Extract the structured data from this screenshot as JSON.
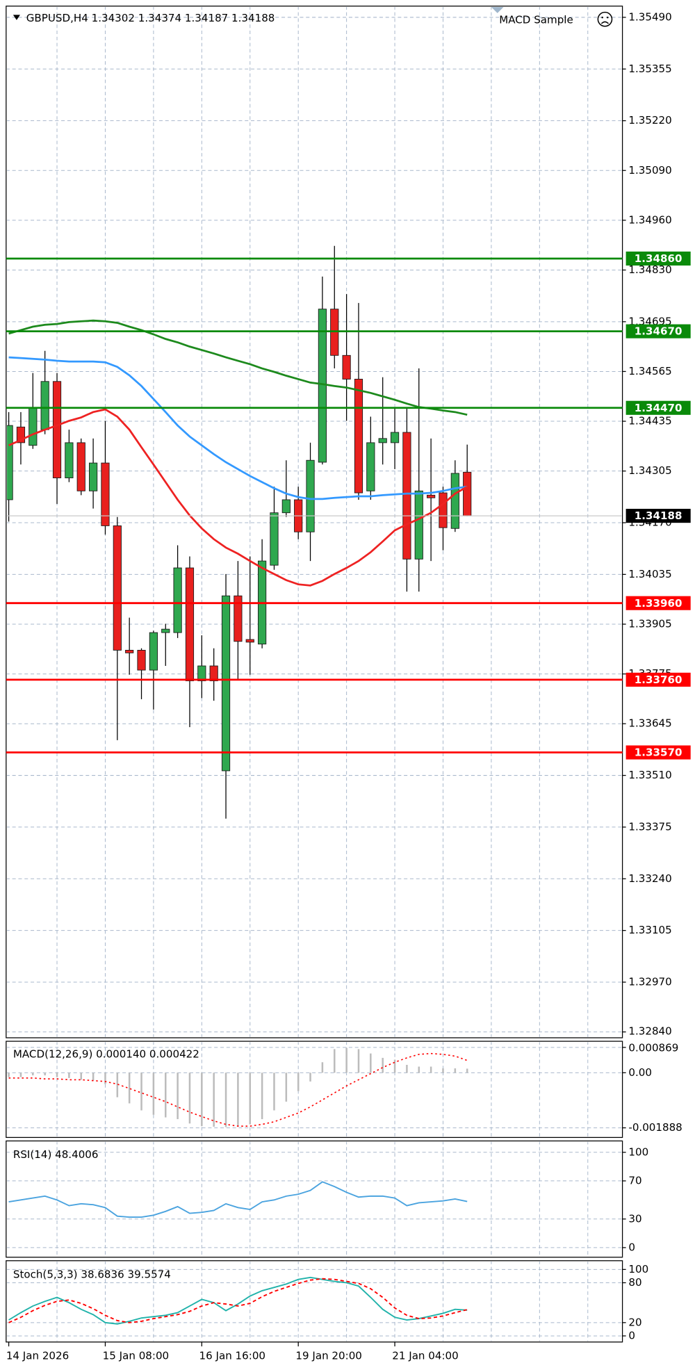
{
  "chart_data": [
    {
      "type": "candlestick",
      "title": "GBPUSD,H4 1.34302 1.34374 1.34187 1.34188",
      "indicator": "MACD Sample",
      "x": [
        "14 Jan 2026",
        null,
        null,
        null,
        null,
        null,
        null,
        null,
        "15 Jan 08:00",
        null,
        null,
        null,
        null,
        null,
        null,
        null,
        "16 Jan 16:00",
        null,
        null,
        null,
        null,
        null,
        null,
        null,
        "19 Jan 20:00",
        null,
        null,
        null,
        null,
        null,
        null,
        null,
        "21 Jan 04:00",
        null,
        null,
        null,
        null,
        null,
        null
      ],
      "open": [
        1.3423,
        1.3442,
        1.34372,
        1.34413,
        1.34539,
        1.34287,
        1.34379,
        1.34253,
        1.34326,
        1.34162,
        1.33837,
        1.33837,
        1.33785,
        1.33883,
        1.33883,
        1.34052,
        1.33757,
        1.33796,
        1.33522,
        1.33979,
        1.33865,
        1.33853,
        1.34059,
        1.34196,
        1.3423,
        1.34146,
        1.34328,
        1.34728,
        1.34607,
        1.34545,
        1.34253,
        1.34379,
        1.34379,
        1.34406,
        1.34075,
        1.34242,
        1.34248,
        1.34155,
        1.34302
      ],
      "high": [
        1.34459,
        1.34459,
        1.34561,
        1.34619,
        1.34561,
        1.34413,
        1.3439,
        1.3439,
        1.34436,
        1.34185,
        1.33922,
        1.33842,
        1.33888,
        1.33906,
        1.34111,
        1.34082,
        1.33876,
        1.33842,
        1.34036,
        1.3407,
        1.34082,
        1.34127,
        1.34264,
        1.34333,
        1.34264,
        1.34379,
        1.34813,
        1.34893,
        1.34767,
        1.34744,
        1.34447,
        1.3455,
        1.3447,
        1.3447,
        1.34573,
        1.3439,
        1.34264,
        1.34333,
        1.34374
      ],
      "low": [
        1.34173,
        1.34322,
        1.34363,
        1.34401,
        1.34219,
        1.34276,
        1.34242,
        1.34207,
        1.34139,
        1.33602,
        1.33773,
        1.33709,
        1.33682,
        1.33796,
        1.33869,
        1.33636,
        1.33712,
        1.33705,
        1.33397,
        1.33762,
        1.33773,
        1.33842,
        1.34047,
        1.34185,
        1.34127,
        1.3407,
        1.34322,
        1.34573,
        1.34436,
        1.3423,
        1.3423,
        1.34322,
        1.3431,
        1.3399,
        1.3399,
        1.3407,
        1.34098,
        1.34146,
        1.34187
      ],
      "close": [
        1.34424,
        1.34379,
        1.3447,
        1.34539,
        1.34287,
        1.34379,
        1.34253,
        1.34326,
        1.34162,
        1.33837,
        1.3383,
        1.33785,
        1.33883,
        1.33892,
        1.34052,
        1.33757,
        1.33796,
        1.33757,
        1.33979,
        1.3386,
        1.33858,
        1.3407,
        1.34196,
        1.3423,
        1.34146,
        1.34333,
        1.34728,
        1.34607,
        1.34545,
        1.34248,
        1.34379,
        1.3439,
        1.34406,
        1.34075,
        1.34253,
        1.34235,
        1.34157,
        1.34299,
        1.34188
      ],
      "up_color": "#2fa84f",
      "down_color": "#e8201e",
      "wick_color": "#000000",
      "series": [
        {
          "color": "#1d8a1d",
          "values": [
            1.34664,
            1.34673,
            1.34682,
            1.34687,
            1.34689,
            1.34694,
            1.34696,
            1.34698,
            1.34696,
            1.34692,
            1.34682,
            1.34673,
            1.34662,
            1.3465,
            1.34641,
            1.3463,
            1.34621,
            1.34612,
            1.34602,
            1.34593,
            1.34584,
            1.34573,
            1.34564,
            1.34554,
            1.34545,
            1.34536,
            1.34532,
            1.34527,
            1.34523,
            1.34516,
            1.34509,
            1.345,
            1.34491,
            1.34481,
            1.34472,
            1.34468,
            1.34463,
            1.34459,
            1.34452
          ]
        },
        {
          "color": "#3399ff",
          "values": [
            1.34602,
            1.346,
            1.34598,
            1.34596,
            1.34593,
            1.34591,
            1.34591,
            1.34591,
            1.34589,
            1.34577,
            1.34555,
            1.34527,
            1.34493,
            1.34459,
            1.34424,
            1.34395,
            1.34372,
            1.34349,
            1.34328,
            1.3431,
            1.34292,
            1.34276,
            1.3426,
            1.34246,
            1.34237,
            1.34232,
            1.34232,
            1.34235,
            1.34237,
            1.34239,
            1.34239,
            1.34242,
            1.34244,
            1.34246,
            1.34246,
            1.34248,
            1.34253,
            1.3426,
            1.34264
          ]
        },
        {
          "color": "#ee2222",
          "values": [
            1.34372,
            1.34386,
            1.34401,
            1.34413,
            1.34424,
            1.34436,
            1.34445,
            1.34459,
            1.34466,
            1.34447,
            1.34413,
            1.34367,
            1.34322,
            1.34276,
            1.3423,
            1.34189,
            1.34155,
            1.34127,
            1.34105,
            1.34089,
            1.3407,
            1.34052,
            1.34036,
            1.3402,
            1.34009,
            1.34006,
            1.34018,
            1.34036,
            1.34052,
            1.3407,
            1.34093,
            1.34121,
            1.3415,
            1.34166,
            1.3418,
            1.34196,
            1.34219,
            1.34246,
            1.34264
          ]
        }
      ],
      "levels": [
        {
          "value": 1.3486,
          "label": "1.34860",
          "color": "#0a8a0a"
        },
        {
          "value": 1.3467,
          "label": "1.34670",
          "color": "#0a8a0a"
        },
        {
          "value": 1.3447,
          "label": "1.34470",
          "color": "#0a8a0a"
        },
        {
          "value": 1.3396,
          "label": "1.33960",
          "color": "#ff0000"
        },
        {
          "value": 1.3376,
          "label": "1.33760",
          "color": "#ff0000"
        },
        {
          "value": 1.3357,
          "label": "1.33570",
          "color": "#ff0000"
        }
      ],
      "current_price": {
        "value": 1.34188,
        "label": "1.34188"
      },
      "ylim": [
        1.32827,
        1.35517
      ],
      "yticks": [
        {
          "value": 1.3549,
          "label": "1.35490"
        },
        1.35355,
        {
          "value": 1.3522,
          "label": "1.35220"
        },
        {
          "value": 1.3509,
          "label": "1.35090"
        },
        {
          "value": 1.3496,
          "label": "1.34960"
        },
        {
          "value": 1.3483,
          "label": "1.34830"
        },
        1.34695,
        1.34565,
        1.34435,
        1.34305,
        {
          "value": 1.3417,
          "label": "1.34170"
        },
        1.34035,
        1.33905,
        1.33775,
        1.33645,
        {
          "value": 1.3351,
          "label": "1.33510"
        },
        1.33375,
        {
          "value": 1.3324,
          "label": "1.33240"
        },
        1.33105,
        {
          "value": 1.3297,
          "label": "1.32970"
        },
        {
          "value": 1.3284,
          "label": "1.32840"
        }
      ],
      "grid": true
    },
    {
      "type": "macd",
      "title": "MACD(12,26,9) 0.000140 0.000422",
      "series": [
        {
          "style": "histogram",
          "color": "#bcbcbc",
          "values": [
            -0.00015,
            -0.00015,
            -9e-05,
            -9e-05,
            -0.00015,
            -0.00018,
            -0.00024,
            -0.00027,
            -0.00039,
            -0.00084,
            -0.00105,
            -0.00129,
            -0.00144,
            -0.00153,
            -0.00159,
            -0.00174,
            -0.00183,
            -0.00185,
            -0.00186,
            -0.00183,
            -0.00177,
            -0.00159,
            -0.00129,
            -0.00099,
            -0.00063,
            -0.0003,
            0.00036,
            0.00081,
            0.00085,
            0.00081,
            0.00066,
            0.00051,
            0.00045,
            0.00027,
            0.00021,
            0.00021,
            0.00015,
            0.00015,
            0.00014
          ]
        },
        {
          "style": "dotted",
          "color": "#ff0000",
          "values": [
            -0.00018,
            -0.00018,
            -0.00018,
            -0.00021,
            -0.00021,
            -0.00024,
            -0.00024,
            -0.00027,
            -0.0003,
            -0.00039,
            -0.00054,
            -0.00069,
            -0.00084,
            -0.00099,
            -0.00117,
            -0.00135,
            -0.0015,
            -0.00165,
            -0.00177,
            -0.00183,
            -0.00183,
            -0.00177,
            -0.00168,
            -0.00153,
            -0.00138,
            -0.00117,
            -0.00093,
            -0.00069,
            -0.00045,
            -0.00024,
            -3e-05,
            0.00018,
            0.00036,
            0.00051,
            0.00063,
            0.00066,
            0.00063,
            0.00057,
            0.000422
          ]
        }
      ],
      "ylim": [
        -0.001888,
        0.000869
      ],
      "yticks": [
        0.000869,
        {
          "value": 0,
          "label": "0.00"
        },
        -0.001888
      ],
      "grid": true
    },
    {
      "type": "line",
      "title": "RSI(14) 48.4006",
      "series": [
        {
          "color": "#4aa3df",
          "values": [
            48,
            50,
            52,
            54,
            50,
            44,
            46,
            45,
            42,
            33,
            32,
            32,
            34,
            38,
            43,
            36,
            37,
            39,
            46,
            42,
            40,
            48,
            50,
            54,
            56,
            60,
            69,
            64,
            58,
            53,
            54,
            54,
            52,
            44,
            47,
            48,
            49,
            51,
            48.4006
          ]
        }
      ],
      "ylim": [
        0,
        100
      ],
      "yticks": [
        100,
        70,
        30,
        0
      ],
      "grid": true
    },
    {
      "type": "line",
      "title": "Stoch(5,3,3) 38.6836 39.5574",
      "series": [
        {
          "color": "#20b2aa",
          "values": [
            24,
            35,
            45,
            52,
            58,
            50,
            40,
            32,
            20,
            18,
            22,
            27,
            29,
            31,
            35,
            45,
            55,
            50,
            38,
            48,
            60,
            68,
            73,
            78,
            85,
            88,
            85,
            82,
            80,
            75,
            58,
            40,
            28,
            24,
            26,
            30,
            34,
            40,
            38.6836
          ]
        },
        {
          "style": "dashed",
          "color": "#ff0000",
          "values": [
            20,
            28,
            38,
            46,
            52,
            54,
            49,
            41,
            31,
            23,
            20,
            22,
            26,
            29,
            32,
            37,
            45,
            50,
            48,
            45,
            49,
            59,
            67,
            73,
            79,
            84,
            86,
            85,
            82,
            79,
            71,
            58,
            42,
            31,
            26,
            27,
            30,
            35,
            39.5574
          ]
        }
      ],
      "ylim": [
        0,
        100
      ],
      "yticks": [
        100,
        80,
        20,
        0
      ],
      "grid": true
    }
  ]
}
